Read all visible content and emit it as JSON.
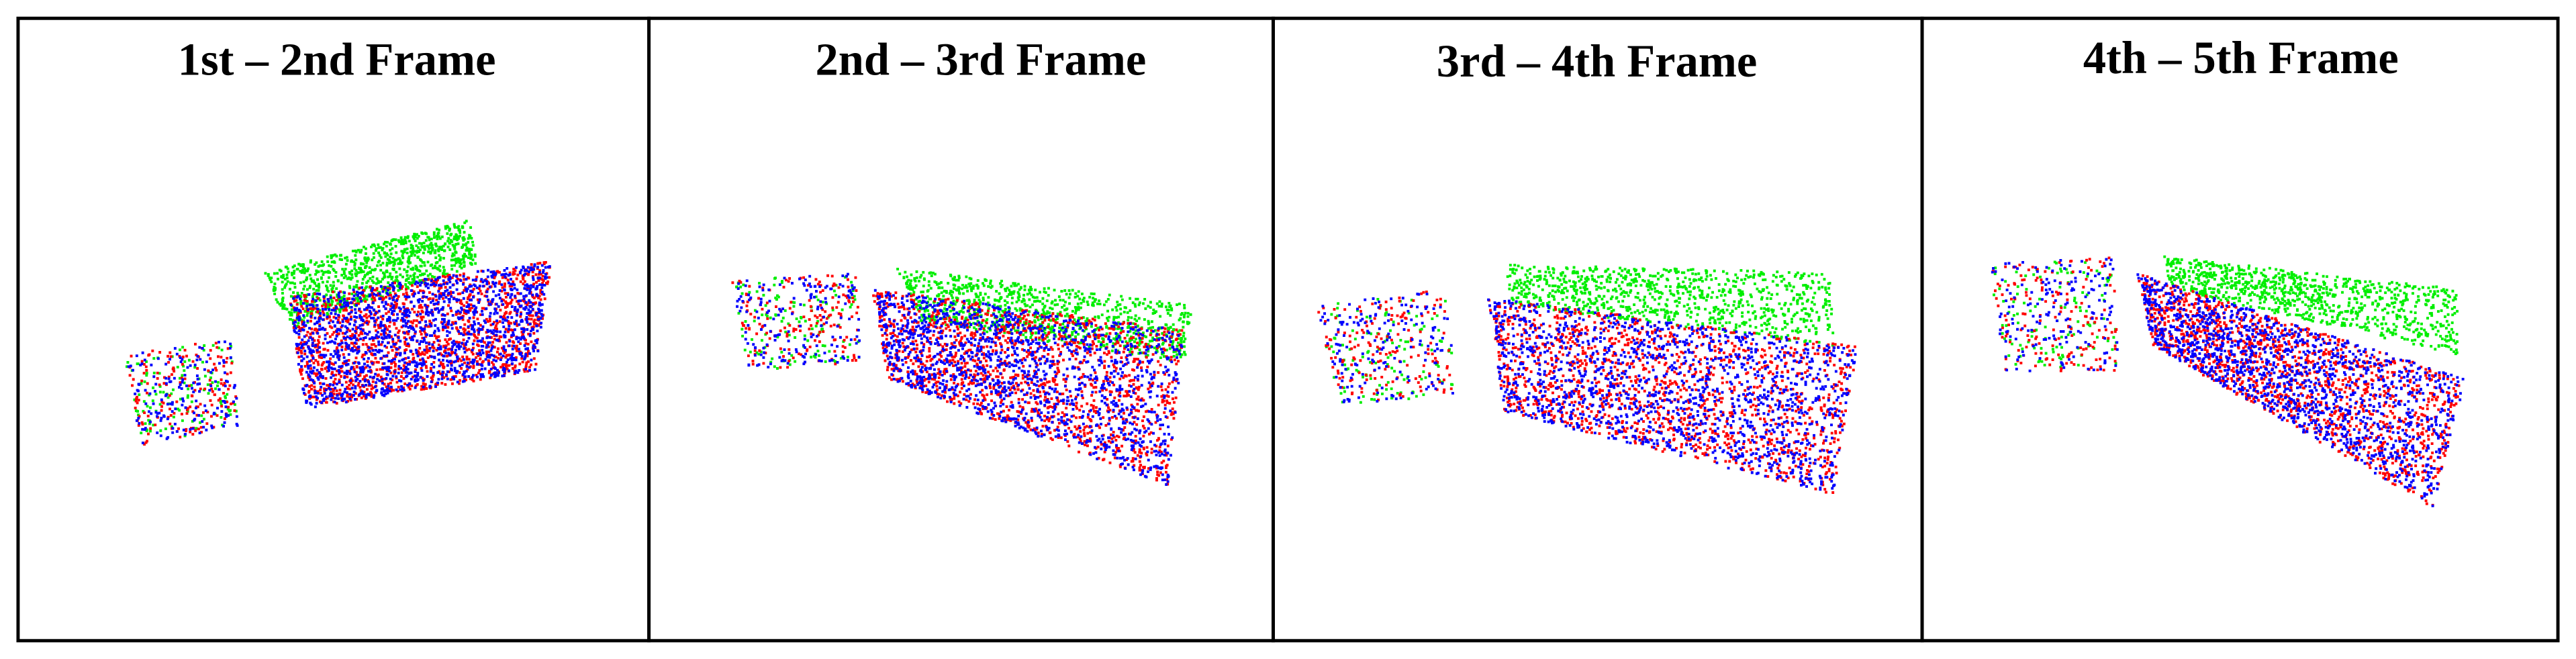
{
  "panels": [
    {
      "title": "1st – 2nd Frame"
    },
    {
      "title": "2nd – 3rd Frame"
    },
    {
      "title": "3rd – 4th Frame"
    },
    {
      "title": "4th – 5th Frame"
    }
  ]
}
